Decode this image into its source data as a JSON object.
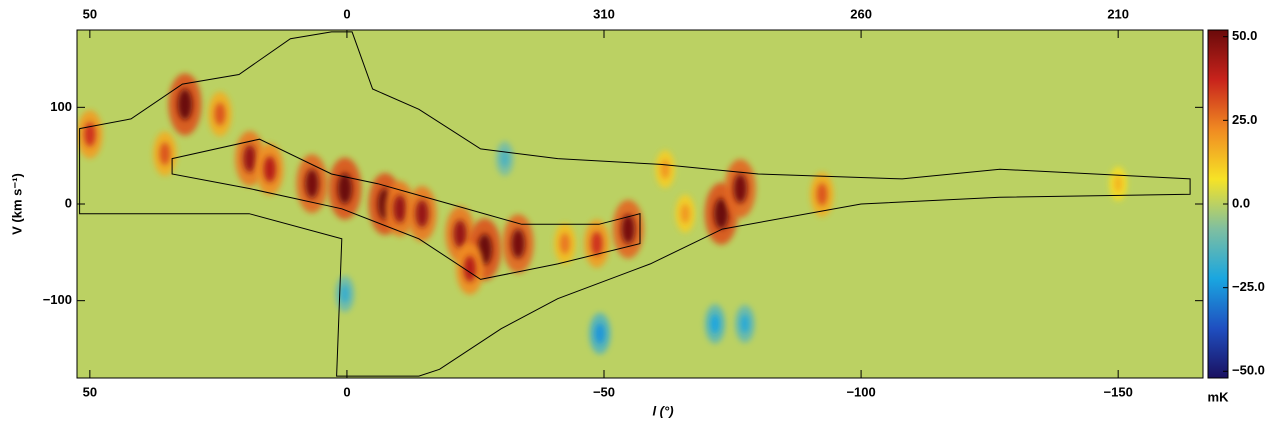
{
  "chart_data": {
    "type": "pv-diagram",
    "x_label": "l (°)",
    "y_label": "V (km s⁻¹)",
    "colorbar_label": "mK",
    "xlim": [
      52.5,
      -166.5
    ],
    "ylim": [
      -180,
      180
    ],
    "clim": [
      -52,
      52
    ],
    "xticks": [
      50,
      0,
      {
        "value": -50,
        "label": "−50"
      },
      {
        "value": -100,
        "label": "−100"
      },
      {
        "value": -150,
        "label": "−150"
      }
    ],
    "top_xticks": [
      50,
      0,
      {
        "value": -50,
        "label": "310"
      },
      {
        "value": -100,
        "label": "260"
      },
      {
        "value": -150,
        "label": "210"
      }
    ],
    "yticks": [
      100,
      0,
      {
        "value": -100,
        "label": "−100"
      }
    ],
    "cticks": [
      {
        "value": 50,
        "label": "50.0"
      },
      {
        "value": 25,
        "label": "25.0"
      },
      {
        "value": 0,
        "label": "0.0"
      },
      {
        "value": -25,
        "label": "−25.0"
      },
      {
        "value": -50,
        "label": "−50.0"
      }
    ],
    "colormap": [
      "#1a1060",
      "#1f4fc0",
      "#1aa6e0",
      "#7fbfa0",
      "#f6e326",
      "#f08a22",
      "#c8231c",
      "#6a0a0a"
    ],
    "sources": {
      "x": [
        50,
        31.5,
        24.7,
        35.4,
        18.9,
        15,
        6.8,
        0.4,
        -7.4,
        -10.3,
        -14.6,
        -22,
        -26.8,
        -23.9,
        -33.3,
        -42.4,
        -48.6,
        -54.7,
        -61.9,
        -65.8,
        -72.8,
        -76.5,
        -92.4,
        -150,
        -49.2,
        -71.6,
        -77.4,
        -30.7,
        0.4
      ],
      "y": [
        72,
        103,
        93,
        52,
        47,
        36,
        21,
        16,
        0,
        -5,
        -10,
        -31,
        -47,
        -67,
        -41,
        -41,
        -41,
        -26,
        36,
        -10,
        -10,
        16,
        10,
        21,
        -134,
        -124,
        -124,
        47,
        -93
      ],
      "values": [
        35,
        55,
        30,
        30,
        45,
        40,
        50,
        55,
        55,
        45,
        45,
        45,
        55,
        40,
        50,
        25,
        35,
        50,
        20,
        20,
        55,
        50,
        30,
        15,
        -25,
        -22,
        -20,
        -15,
        -18
      ]
    },
    "contours": [
      {
        "x": [
          52,
          42,
          32,
          21,
          11,
          3,
          -1,
          -5,
          -14,
          -26,
          -41,
          -61,
          -80,
          -108,
          -127,
          -164,
          -164,
          -127,
          -100,
          -73,
          -59,
          -41,
          -30,
          -18,
          -14,
          2,
          1,
          19,
          52
        ],
        "y": [
          78,
          88,
          124,
          134,
          171,
          178,
          178,
          119,
          98,
          57,
          47,
          41,
          31,
          26,
          36,
          26,
          10,
          7,
          0,
          -26,
          -62,
          -98,
          -129,
          -171,
          -178,
          -178,
          -36,
          -10,
          -10
        ]
      },
      {
        "x": [
          34,
          17,
          3,
          -6,
          -20,
          -34,
          -49,
          -57,
          -57,
          -41,
          -26,
          -14,
          1,
          19,
          34
        ],
        "y": [
          47,
          67,
          31,
          21,
          0,
          -21,
          -21,
          -10,
          -41,
          -62,
          -78,
          -36,
          -5,
          16,
          31
        ]
      }
    ]
  }
}
